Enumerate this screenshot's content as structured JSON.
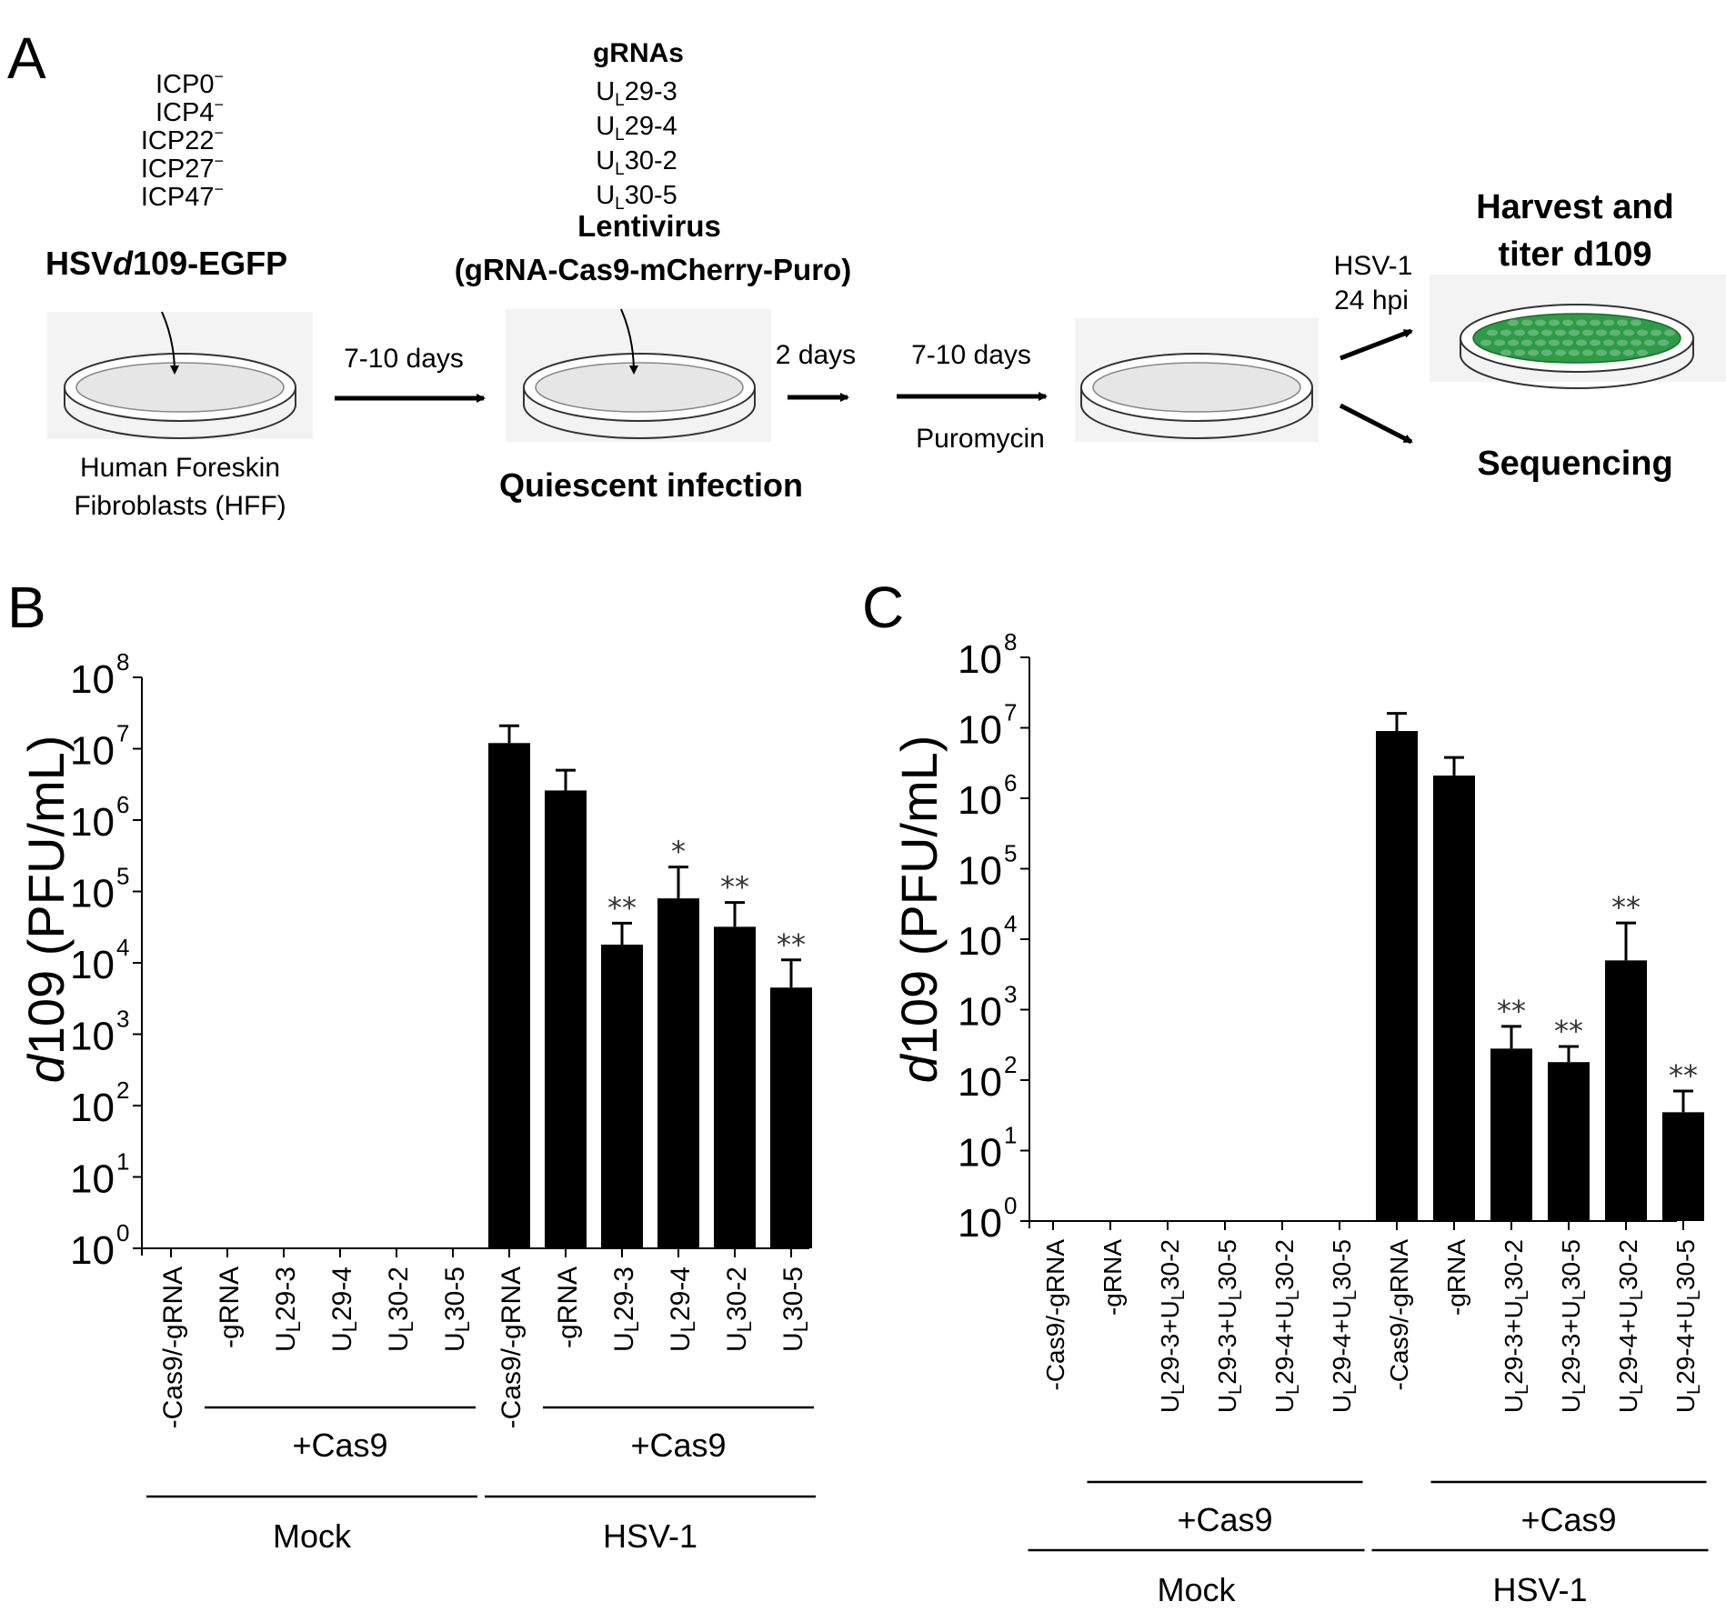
{
  "panel_a": {
    "letter": "A",
    "mutations": [
      "ICP0",
      "ICP4",
      "ICP22",
      "ICP27",
      "ICP47"
    ],
    "mutation_sup": "−",
    "virus_prefix": "HSV",
    "virus_italic": "d",
    "virus_suffix": "109-EGFP",
    "cells_line1": "Human Foreskin",
    "cells_line2": "Fibroblasts (HFF)",
    "step1": "7-10 days",
    "grnas_title": "gRNAs",
    "grnas": [
      {
        "main": "U",
        "sub": "L",
        "rest": "29-3"
      },
      {
        "main": "U",
        "sub": "L",
        "rest": "29-4"
      },
      {
        "main": "U",
        "sub": "L",
        "rest": "30-2"
      },
      {
        "main": "U",
        "sub": "L",
        "rest": "30-5"
      }
    ],
    "lentivirus": "Lentivirus",
    "construct": "(gRNA-Cas9-mCherry-Puro)",
    "quiescent": "Quiescent infection",
    "step2": "2 days",
    "step3": "7-10 days",
    "selection": "Puromycin",
    "superinfection": "HSV-1",
    "superinfection_time": "24 hpi",
    "harvest_line1": "Harvest and",
    "harvest_line2": "titer d109",
    "sequencing": "Sequencing",
    "dish_color": "#2e9b47"
  },
  "chart_data": [
    {
      "panel": "B",
      "type": "bar",
      "yscale": "log",
      "ylim": [
        1,
        100000000
      ],
      "ylabel_italic": "d",
      "ylabel_rest": "109 (PFU/mL)",
      "yticks": [
        {
          "base": "10",
          "exp": "0"
        },
        {
          "base": "10",
          "exp": "1"
        },
        {
          "base": "10",
          "exp": "2"
        },
        {
          "base": "10",
          "exp": "3"
        },
        {
          "base": "10",
          "exp": "4"
        },
        {
          "base": "10",
          "exp": "5"
        },
        {
          "base": "10",
          "exp": "6"
        },
        {
          "base": "10",
          "exp": "7"
        },
        {
          "base": "10",
          "exp": "8"
        }
      ],
      "categories": [
        {
          "main": "-Cas9/-gRNA",
          "sub": "",
          "rest": ""
        },
        {
          "main": "-gRNA",
          "sub": "",
          "rest": ""
        },
        {
          "main": "U",
          "sub": "L",
          "rest": "29-3"
        },
        {
          "main": "U",
          "sub": "L",
          "rest": "29-4"
        },
        {
          "main": "U",
          "sub": "L",
          "rest": "30-2"
        },
        {
          "main": "U",
          "sub": "L",
          "rest": "30-5"
        },
        {
          "main": "-Cas9/-gRNA",
          "sub": "",
          "rest": ""
        },
        {
          "main": "-gRNA",
          "sub": "",
          "rest": ""
        },
        {
          "main": "U",
          "sub": "L",
          "rest": "29-3"
        },
        {
          "main": "U",
          "sub": "L",
          "rest": "29-4"
        },
        {
          "main": "U",
          "sub": "L",
          "rest": "30-2"
        },
        {
          "main": "U",
          "sub": "L",
          "rest": "30-5"
        }
      ],
      "values": [
        null,
        null,
        null,
        null,
        null,
        null,
        12000000,
        2600000,
        18000,
        80000,
        32000,
        4500
      ],
      "error_upper": [
        null,
        null,
        null,
        null,
        null,
        null,
        21000000,
        5000000,
        36000,
        220000,
        70000,
        11000
      ],
      "significance": [
        "",
        "",
        "",
        "",
        "",
        "",
        "",
        "",
        "**",
        "*",
        "**",
        "**"
      ],
      "group_labels": [
        {
          "label": "+Cas9",
          "from": 1,
          "to": 5
        },
        {
          "label": "+Cas9",
          "from": 7,
          "to": 11
        }
      ],
      "condition_labels": [
        {
          "label": "Mock",
          "from": 0,
          "to": 5
        },
        {
          "label": "HSV-1",
          "from": 6,
          "to": 11
        }
      ]
    },
    {
      "panel": "C",
      "type": "bar",
      "yscale": "log",
      "ylim": [
        1,
        100000000
      ],
      "ylabel_italic": "d",
      "ylabel_rest": "109 (PFU/mL)",
      "yticks": [
        {
          "base": "10",
          "exp": "0"
        },
        {
          "base": "10",
          "exp": "1"
        },
        {
          "base": "10",
          "exp": "2"
        },
        {
          "base": "10",
          "exp": "3"
        },
        {
          "base": "10",
          "exp": "4"
        },
        {
          "base": "10",
          "exp": "5"
        },
        {
          "base": "10",
          "exp": "6"
        },
        {
          "base": "10",
          "exp": "7"
        },
        {
          "base": "10",
          "exp": "8"
        }
      ],
      "categories": [
        {
          "segments": [
            {
              "t": "-Cas9/-gRNA"
            }
          ]
        },
        {
          "segments": [
            {
              "t": "-gRNA"
            }
          ]
        },
        {
          "segments": [
            {
              "t": "U"
            },
            {
              "t": "L",
              "sub": true
            },
            {
              "t": "29-3+U"
            },
            {
              "t": "L",
              "sub": true
            },
            {
              "t": "30-2"
            }
          ]
        },
        {
          "segments": [
            {
              "t": "U"
            },
            {
              "t": "L",
              "sub": true
            },
            {
              "t": "29-3+U"
            },
            {
              "t": "L",
              "sub": true
            },
            {
              "t": "30-5"
            }
          ]
        },
        {
          "segments": [
            {
              "t": "U"
            },
            {
              "t": "L",
              "sub": true
            },
            {
              "t": "29-4+U"
            },
            {
              "t": "L",
              "sub": true
            },
            {
              "t": "30-2"
            }
          ]
        },
        {
          "segments": [
            {
              "t": "U"
            },
            {
              "t": "L",
              "sub": true
            },
            {
              "t": "29-4+U"
            },
            {
              "t": "L",
              "sub": true
            },
            {
              "t": "30-5"
            }
          ]
        },
        {
          "segments": [
            {
              "t": "-Cas9/-gRNA"
            }
          ]
        },
        {
          "segments": [
            {
              "t": "-gRNA"
            }
          ]
        },
        {
          "segments": [
            {
              "t": "U"
            },
            {
              "t": "L",
              "sub": true
            },
            {
              "t": "29-3+U"
            },
            {
              "t": "L",
              "sub": true
            },
            {
              "t": "30-2"
            }
          ]
        },
        {
          "segments": [
            {
              "t": "U"
            },
            {
              "t": "L",
              "sub": true
            },
            {
              "t": "29-3+U"
            },
            {
              "t": "L",
              "sub": true
            },
            {
              "t": "30-5"
            }
          ]
        },
        {
          "segments": [
            {
              "t": "U"
            },
            {
              "t": "L",
              "sub": true
            },
            {
              "t": "29-4+U"
            },
            {
              "t": "L",
              "sub": true
            },
            {
              "t": "30-2"
            }
          ]
        },
        {
          "segments": [
            {
              "t": "U"
            },
            {
              "t": "L",
              "sub": true
            },
            {
              "t": "29-4+U"
            },
            {
              "t": "L",
              "sub": true
            },
            {
              "t": "30-5"
            }
          ]
        }
      ],
      "values": [
        null,
        null,
        null,
        null,
        null,
        null,
        9000000,
        2100000,
        280,
        180,
        5000,
        35
      ],
      "error_upper": [
        null,
        null,
        null,
        null,
        null,
        null,
        16000000,
        3800000,
        580,
        300,
        17000,
        70
      ],
      "significance": [
        "",
        "",
        "",
        "",
        "",
        "",
        "",
        "",
        "**",
        "**",
        "**",
        "**"
      ],
      "group_labels": [
        {
          "label": "+Cas9",
          "from": 1,
          "to": 5
        },
        {
          "label": "+Cas9",
          "from": 7,
          "to": 11
        }
      ],
      "condition_labels": [
        {
          "label": "Mock",
          "from": 0,
          "to": 5
        },
        {
          "label": "HSV-1",
          "from": 6,
          "to": 11
        }
      ]
    }
  ]
}
